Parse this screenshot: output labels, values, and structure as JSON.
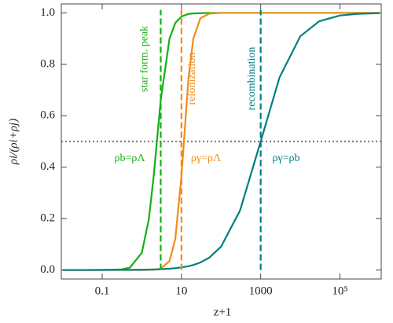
{
  "chart_data": {
    "type": "line",
    "xlabel": "z+1",
    "ylabel": "ρi/(ρi+ρj)",
    "log_x": true,
    "xlim": [
      0.0093,
      1100000
    ],
    "ylim": [
      -0.035,
      1.035
    ],
    "xticks": [
      0.1,
      10,
      1000,
      {
        "value": 100000,
        "label": "10⁵"
      }
    ],
    "yticks": [
      {
        "value": 0,
        "label": "0.0"
      },
      0.2,
      0.4,
      0.6,
      0.8,
      {
        "value": 1,
        "label": "1.0"
      }
    ],
    "x": [
      0.01,
      0.03,
      0.1,
      0.3,
      0.5,
      1,
      1.5,
      2,
      3,
      5,
      7,
      10,
      15,
      20,
      30,
      50,
      100,
      300,
      1000,
      3000,
      10000,
      30000,
      100000,
      300000,
      1000000
    ],
    "series": [
      {
        "color": "#14b014",
        "values": [
          0,
          0,
          0.0001,
          0.002,
          0.009,
          0.067,
          0.196,
          0.367,
          0.661,
          0.9,
          0.961,
          0.986,
          0.996,
          0.998,
          0.999,
          1,
          1,
          1,
          1,
          1,
          1,
          1,
          1,
          1,
          1
        ]
      },
      {
        "color": "#f28c18",
        "values": [
          0,
          0,
          0,
          0,
          0,
          0.0001,
          0.0003,
          0.0009,
          0.005,
          0.035,
          0.121,
          0.364,
          0.743,
          0.901,
          0.979,
          0.997,
          1,
          1,
          1,
          1,
          1,
          1,
          1,
          1,
          1
        ]
      },
      {
        "color": "#007f80",
        "values": [
          0,
          0,
          0.0001,
          0.0003,
          0.0005,
          0.001,
          0.0015,
          0.002,
          0.003,
          0.005,
          0.007,
          0.0099,
          0.0148,
          0.0196,
          0.0291,
          0.0476,
          0.0909,
          0.2308,
          0.5,
          0.75,
          0.9091,
          0.9677,
          0.9901,
          0.9967,
          0.999
        ]
      }
    ],
    "vlines": [
      {
        "x": 3,
        "color": "#14b014",
        "label": "star form. peak"
      },
      {
        "x": 10,
        "color": "#f28c18",
        "label": "reionization"
      },
      {
        "x": 1000,
        "color": "#007f80",
        "label": "recombination"
      }
    ],
    "hline": {
      "y": 0.5,
      "color": "#808080"
    },
    "annotations": [
      {
        "text": "ρb=ρΛ",
        "color": "#14b014"
      },
      {
        "text": "ργ=ρΛ",
        "color": "#f28c18"
      },
      {
        "text": "ργ=ρb",
        "color": "#007f80"
      }
    ]
  }
}
